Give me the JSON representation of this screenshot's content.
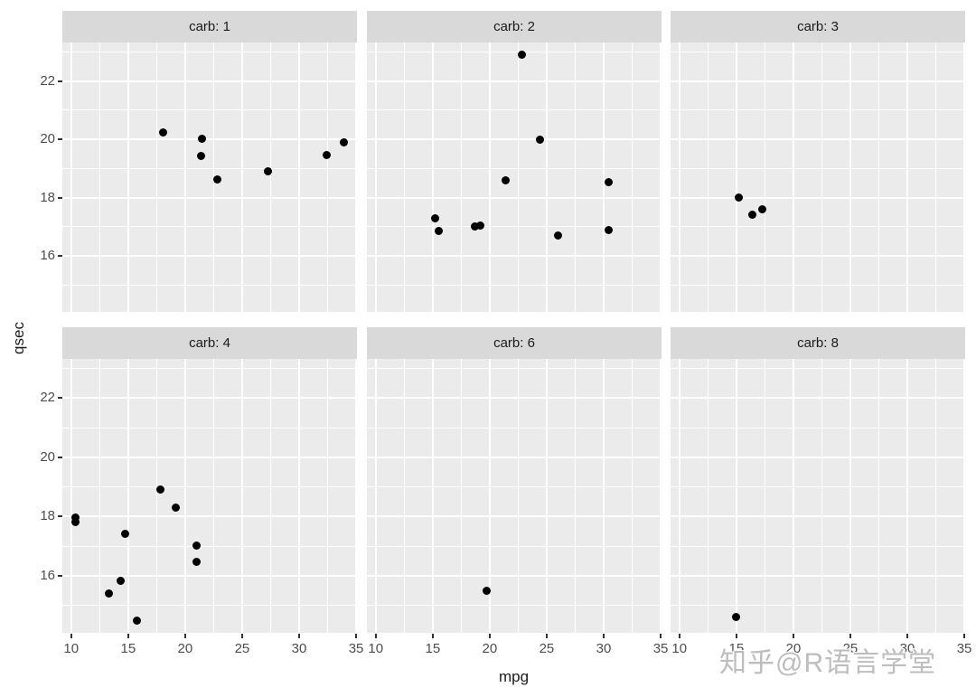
{
  "watermark": {
    "text": "知乎@R语言学堂"
  },
  "colors": {
    "panel_background": "#EBEBEB",
    "strip_background": "#D9D9D9",
    "strip_text": "#1A1A1A",
    "gridline": "#FFFFFF",
    "tick_label": "#4D4D4D",
    "axis_title": "#1A1A1A",
    "tick_mark": "#333333",
    "point": "#000000",
    "watermark": "#BDBDBD"
  },
  "chart_data": {
    "type": "scatter",
    "title": "",
    "xlabel": "mpg",
    "ylabel": "qsec",
    "facet_variable": "carb",
    "grid": true,
    "legend": "none",
    "xlim": [
      9.225,
      35.075
    ],
    "ylim": [
      14.08,
      23.32
    ],
    "x_ticks": [
      10,
      15,
      20,
      25,
      30,
      35
    ],
    "y_ticks": [
      16,
      18,
      20,
      22
    ],
    "x_minor_ticks": [
      12.5,
      17.5,
      22.5,
      27.5,
      32.5
    ],
    "y_minor_ticks": [
      15,
      17,
      19,
      21,
      23
    ],
    "facets": [
      {
        "label": "carb: 1",
        "carb": 1,
        "points": [
          [
            18.1,
            20.22
          ],
          [
            21.4,
            19.44
          ],
          [
            21.5,
            20.01
          ],
          [
            22.8,
            18.61
          ],
          [
            27.3,
            18.9
          ],
          [
            32.4,
            19.47
          ],
          [
            33.9,
            19.9
          ]
        ]
      },
      {
        "label": "carb: 2",
        "carb": 2,
        "points": [
          [
            15.2,
            17.3
          ],
          [
            15.5,
            16.87
          ],
          [
            18.7,
            17.02
          ],
          [
            19.2,
            17.05
          ],
          [
            21.4,
            18.6
          ],
          [
            22.8,
            22.9
          ],
          [
            24.4,
            20.0
          ],
          [
            26.0,
            16.7
          ],
          [
            30.4,
            16.9
          ],
          [
            30.4,
            18.52
          ]
        ]
      },
      {
        "label": "carb: 3",
        "carb": 3,
        "points": [
          [
            15.2,
            18.0
          ],
          [
            16.4,
            17.4
          ],
          [
            17.3,
            17.6
          ]
        ]
      },
      {
        "label": "carb: 4",
        "carb": 4,
        "points": [
          [
            10.4,
            17.98
          ],
          [
            10.4,
            17.82
          ],
          [
            13.3,
            15.41
          ],
          [
            14.3,
            15.84
          ],
          [
            14.7,
            17.42
          ],
          [
            15.8,
            14.5
          ],
          [
            17.8,
            18.9
          ],
          [
            19.2,
            18.3
          ],
          [
            21.0,
            16.46
          ],
          [
            21.0,
            17.02
          ]
        ]
      },
      {
        "label": "carb: 6",
        "carb": 6,
        "points": [
          [
            19.7,
            15.5
          ]
        ]
      },
      {
        "label": "carb: 8",
        "carb": 8,
        "points": [
          [
            15.0,
            14.6
          ]
        ]
      }
    ]
  }
}
